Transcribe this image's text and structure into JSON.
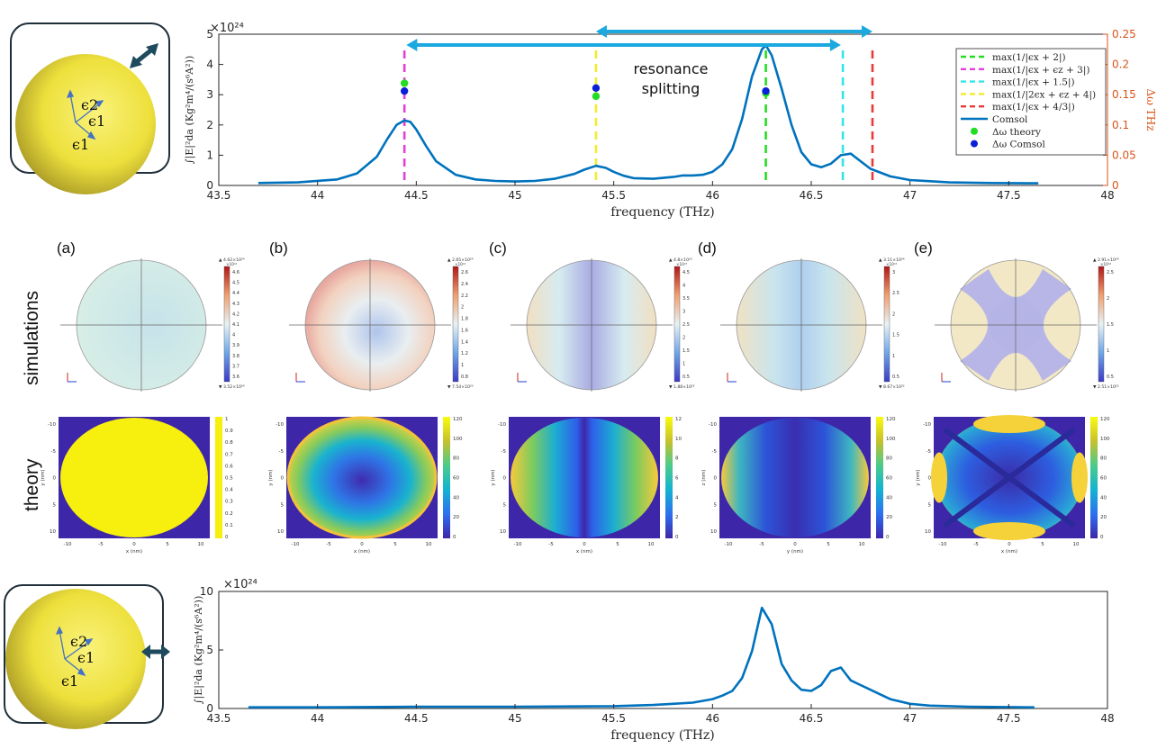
{
  "figure": {
    "row_labels": {
      "simulations": "simulations",
      "theory": "theory"
    },
    "panel_labels": [
      "(a)",
      "(b)",
      "(c)",
      "(d)",
      "(e)"
    ],
    "inset_eps": {
      "e2": "ϵ2",
      "e1": "ϵ1",
      "e1b": "ϵ1"
    },
    "annotation": {
      "line1": "resonance",
      "line2": "splitting"
    },
    "colors": {
      "comsol": "#0072BD",
      "right_axis": "#D95319",
      "arrow": "#1BA9E0",
      "sphere": "#EDE03C"
    }
  },
  "chart_data": [
    {
      "type": "line",
      "id": "top-spectrum",
      "xlabel": "frequency (THz)",
      "ylabel": "∫|E|²da (Kg²m⁴/(s⁶A²))",
      "y_exponent": "×10²⁴",
      "y2label": "Δω THz",
      "xlim": [
        43.5,
        48
      ],
      "ylim": [
        0,
        5
      ],
      "y2lim": [
        0,
        0.25
      ],
      "xticks": [
        "43.5",
        "44",
        "44.5",
        "45",
        "45.5",
        "46",
        "46.5",
        "47",
        "47.5",
        "48"
      ],
      "yticks": [
        "0",
        "1",
        "2",
        "3",
        "4",
        "5"
      ],
      "y2ticks": [
        "0",
        "0.05",
        "0.1",
        "0.15",
        "0.2",
        "0.25"
      ],
      "legend": [
        {
          "label": "max(1/|ϵx + 2|)",
          "color": "#22DD22",
          "style": "dash"
        },
        {
          "label": "max(1/|ϵx + ϵz + 3|)",
          "color": "#E63FD9",
          "style": "dash"
        },
        {
          "label": "max(1/|ϵx + 1.5|)",
          "color": "#34E5E5",
          "style": "dash"
        },
        {
          "label": "max(1/|2ϵx + ϵz + 4|)",
          "color": "#F2EC2B",
          "style": "dash"
        },
        {
          "label": "max(1/|ϵx + 4/3|)",
          "color": "#E53B3B",
          "style": "dash"
        },
        {
          "label": "Comsol",
          "color": "#0072BD",
          "style": "line"
        },
        {
          "label": "Δω theory",
          "color": "#22DD22",
          "style": "dot"
        },
        {
          "label": "Δω Comsol",
          "color": "#0A1FD8",
          "style": "dot"
        }
      ],
      "vlines": [
        {
          "x": 44.44,
          "color": "#E63FD9"
        },
        {
          "x": 45.41,
          "color": "#F2EC2B"
        },
        {
          "x": 46.27,
          "color": "#22DD22"
        },
        {
          "x": 46.66,
          "color": "#34E5E5"
        },
        {
          "x": 46.81,
          "color": "#E53B3B"
        }
      ],
      "dots_theory": [
        [
          44.44,
          3.38
        ],
        [
          45.41,
          2.95
        ],
        [
          46.27,
          3.05
        ]
      ],
      "dots_comsol": [
        [
          44.44,
          3.12
        ],
        [
          45.41,
          3.22
        ],
        [
          46.27,
          3.12
        ]
      ],
      "arrows": [
        [
          44.45,
          46.65
        ],
        [
          45.41,
          46.81
        ]
      ],
      "series": [
        {
          "name": "Comsol",
          "x": [
            43.7,
            43.9,
            44.1,
            44.2,
            44.3,
            44.35,
            44.4,
            44.44,
            44.47,
            44.5,
            44.55,
            44.6,
            44.7,
            44.8,
            44.9,
            45.0,
            45.1,
            45.2,
            45.3,
            45.35,
            45.41,
            45.46,
            45.5,
            45.55,
            45.6,
            45.7,
            45.8,
            45.85,
            45.9,
            45.95,
            46.0,
            46.05,
            46.1,
            46.15,
            46.2,
            46.25,
            46.27,
            46.3,
            46.35,
            46.4,
            46.45,
            46.5,
            46.55,
            46.6,
            46.65,
            46.7,
            46.75,
            46.8,
            46.9,
            47.0,
            47.2,
            47.4,
            47.65
          ],
          "y": [
            0.08,
            0.1,
            0.2,
            0.4,
            0.95,
            1.5,
            2.0,
            2.15,
            2.1,
            1.85,
            1.3,
            0.8,
            0.35,
            0.2,
            0.15,
            0.13,
            0.15,
            0.22,
            0.38,
            0.52,
            0.65,
            0.58,
            0.45,
            0.32,
            0.24,
            0.22,
            0.28,
            0.33,
            0.33,
            0.35,
            0.45,
            0.7,
            1.2,
            2.2,
            3.6,
            4.5,
            4.63,
            4.3,
            3.2,
            2.0,
            1.1,
            0.7,
            0.6,
            0.72,
            1.0,
            1.05,
            0.8,
            0.55,
            0.3,
            0.18,
            0.1,
            0.08,
            0.07
          ]
        }
      ]
    },
    {
      "type": "line",
      "id": "bottom-spectrum",
      "xlabel": "frequency (THz)",
      "ylabel": "∫|E|²da (Kg²m⁴/(s⁶A²))",
      "y_exponent": "×10²⁴",
      "xlim": [
        43.5,
        48
      ],
      "ylim": [
        0,
        10
      ],
      "xticks": [
        "43.5",
        "44",
        "44.5",
        "45",
        "45.5",
        "46",
        "46.5",
        "47",
        "47.5",
        "48"
      ],
      "yticks": [
        "0",
        "5",
        "10"
      ],
      "series": [
        {
          "name": "Comsol",
          "x": [
            43.65,
            44.0,
            44.5,
            45.0,
            45.5,
            45.7,
            45.8,
            45.9,
            46.0,
            46.05,
            46.1,
            46.15,
            46.2,
            46.25,
            46.3,
            46.35,
            46.4,
            46.45,
            46.5,
            46.55,
            46.6,
            46.65,
            46.7,
            46.75,
            46.8,
            46.85,
            46.9,
            47.0,
            47.1,
            47.3,
            47.63
          ],
          "y": [
            0.1,
            0.1,
            0.15,
            0.15,
            0.2,
            0.3,
            0.4,
            0.5,
            0.8,
            1.1,
            1.5,
            2.6,
            4.9,
            8.6,
            7.2,
            3.8,
            2.4,
            1.6,
            1.5,
            2.0,
            3.2,
            3.5,
            2.4,
            2.0,
            1.6,
            1.2,
            0.8,
            0.4,
            0.25,
            0.15,
            0.1
          ]
        }
      ]
    }
  ],
  "panels": {
    "simulations": [
      {
        "id": "a",
        "max": "▲ 4.62×10²⁴",
        "min": "▼ 3.52×10²⁴",
        "ticks": [
          "4.6",
          "4.5",
          "4.4",
          "4.3",
          "4.2",
          "4.1",
          "4",
          "3.9",
          "3.8",
          "3.7",
          "3.6"
        ],
        "exp": "×10²⁴"
      },
      {
        "id": "b",
        "max": "▲ 2.65×10²⁴",
        "min": "▼ 7.54×10²³",
        "ticks": [
          "2.6",
          "2.4",
          "2.2",
          "2",
          "1.8",
          "1.6",
          "1.4",
          "1.2",
          "1",
          "0.8"
        ],
        "exp": "×10²⁴"
      },
      {
        "id": "c",
        "max": "▲ 4.8×10²³",
        "min": "▼ 1.88×10²²",
        "ticks": [
          "4.5",
          "4",
          "3.5",
          "3",
          "2.5",
          "2",
          "1.5",
          "1",
          "0.5"
        ],
        "exp": "×10²³"
      },
      {
        "id": "d",
        "max": "▲ 3.11×10²⁴",
        "min": "▼ 8.67×10²²",
        "ticks": [
          "3",
          "2.5",
          "2",
          "1.5",
          "1",
          "0.5"
        ],
        "exp": "×10²⁴"
      },
      {
        "id": "e",
        "max": "▲ 2.91×10²⁴",
        "min": "▼ 2.51×10²²",
        "ticks": [
          "2.5",
          "2",
          "1.5",
          "1",
          "0.5"
        ],
        "exp": "×10²⁴"
      }
    ],
    "theory": [
      {
        "id": "a",
        "xlabel": "x (nm)",
        "ylabel": "y (nm)",
        "cticks": [
          "1",
          "0.9",
          "0.8",
          "0.7",
          "0.6",
          "0.5",
          "0.4",
          "0.3",
          "0.2",
          "0.1",
          "0"
        ]
      },
      {
        "id": "b",
        "xlabel": "x (nm)",
        "ylabel": "y (nm)",
        "cticks": [
          "120",
          "100",
          "80",
          "60",
          "40",
          "20",
          "0"
        ]
      },
      {
        "id": "c",
        "xlabel": "x (nm)",
        "ylabel": "y (nm)",
        "cticks": [
          "12",
          "10",
          "8",
          "6",
          "4",
          "2",
          "0"
        ]
      },
      {
        "id": "d",
        "xlabel": "y (nm)",
        "ylabel": "z (nm)",
        "cticks": [
          "120",
          "100",
          "80",
          "60",
          "40",
          "20",
          "0"
        ]
      },
      {
        "id": "e",
        "xlabel": "x (nm)",
        "ylabel": "y (nm)",
        "cticks": [
          "120",
          "100",
          "80",
          "60",
          "40",
          "20",
          "0"
        ]
      }
    ],
    "theory_xticks": [
      "-10",
      "-5",
      "0",
      "5",
      "10"
    ],
    "theory_yticks": [
      "-10",
      "-5",
      "0",
      "5",
      "10"
    ]
  }
}
